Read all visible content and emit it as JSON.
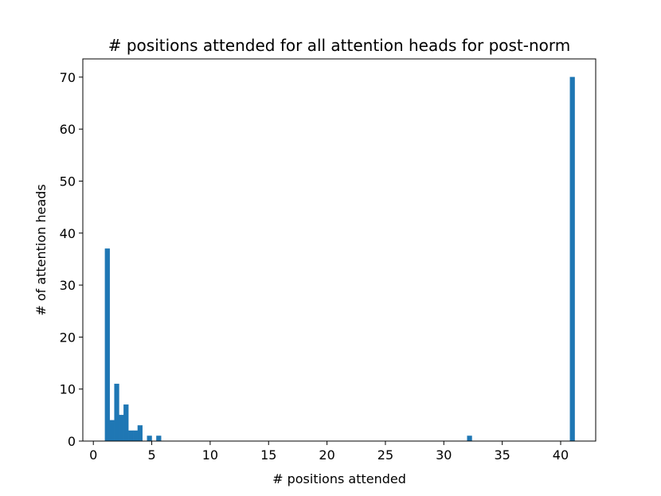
{
  "chart_data": {
    "type": "bar",
    "title": "# positions attended for all attention heads for post-norm",
    "xlabel": "# positions attended",
    "ylabel": "# of attention heads",
    "xlim": [
      -0.9,
      43.0
    ],
    "ylim": [
      0,
      73.5
    ],
    "xticks": [
      0,
      5,
      10,
      15,
      20,
      25,
      30,
      35,
      40
    ],
    "yticks": [
      0,
      10,
      20,
      30,
      40,
      50,
      60,
      70
    ],
    "bin_width": 0.4,
    "grid": false,
    "legend": "none",
    "bar_color": "#1f77b4",
    "bars": [
      {
        "x": 1.2,
        "value": 37
      },
      {
        "x": 1.6,
        "value": 4
      },
      {
        "x": 2.0,
        "value": 11
      },
      {
        "x": 2.4,
        "value": 5
      },
      {
        "x": 2.8,
        "value": 7
      },
      {
        "x": 3.2,
        "value": 2
      },
      {
        "x": 3.6,
        "value": 2
      },
      {
        "x": 4.0,
        "value": 3
      },
      {
        "x": 4.8,
        "value": 1
      },
      {
        "x": 5.6,
        "value": 1
      },
      {
        "x": 32.2,
        "value": 1
      },
      {
        "x": 41.0,
        "value": 70
      }
    ]
  }
}
